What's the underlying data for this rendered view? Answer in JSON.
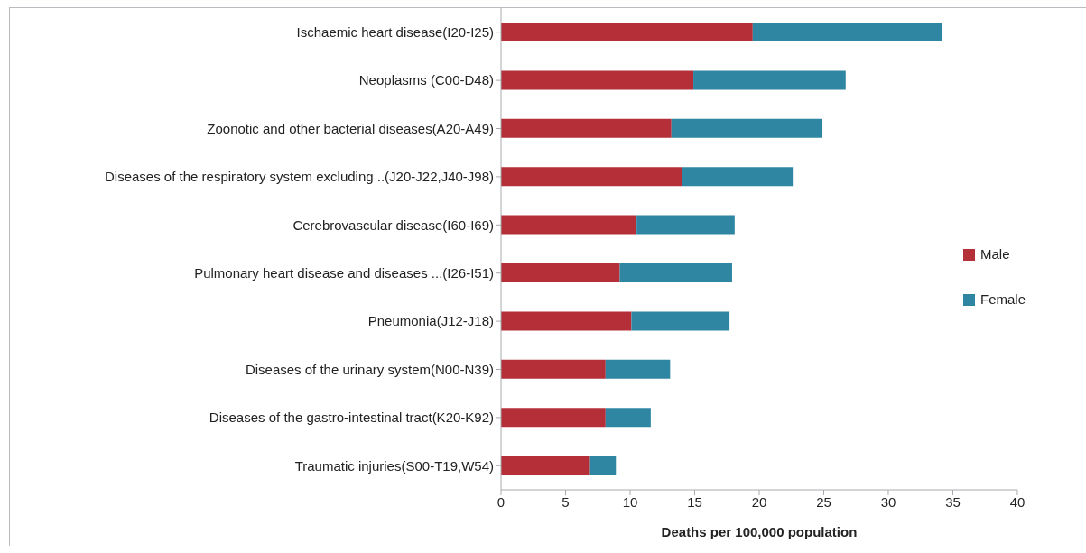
{
  "chart_data": {
    "type": "bar",
    "orientation": "horizontal",
    "stacked": true,
    "xlabel": "Deaths per 100,000 population",
    "categories": [
      "Ischaemic heart disease(I20-I25)",
      "Neoplasms (C00-D48)",
      "Zoonotic and other bacterial diseases(A20-A49)",
      "Diseases of the respiratory system excluding ..(J20-J22,J40-J98)",
      "Cerebrovascular disease(I60-I69)",
      "Pulmonary heart disease and diseases ...(I26-I51)",
      "Pneumonia(J12-J18)",
      "Diseases of the urinary system(N00-N39)",
      "Diseases of the gastro-intestinal tract(K20-K92)",
      "Traumatic injuries(S00-T19,W54)"
    ],
    "series": [
      {
        "name": "Male",
        "color": "#b52f38",
        "values": [
          19.5,
          14.9,
          13.2,
          14.0,
          10.5,
          9.2,
          10.1,
          8.1,
          8.1,
          6.9
        ]
      },
      {
        "name": "Female",
        "color": "#2e86a2",
        "values": [
          14.7,
          11.8,
          11.7,
          8.6,
          7.6,
          8.7,
          7.6,
          5.0,
          3.5,
          2.0
        ]
      }
    ],
    "xlim": [
      0,
      40
    ],
    "xticks": [
      0,
      5,
      10,
      15,
      20,
      25,
      30,
      35,
      40
    ],
    "grid": false,
    "legend": "right"
  }
}
